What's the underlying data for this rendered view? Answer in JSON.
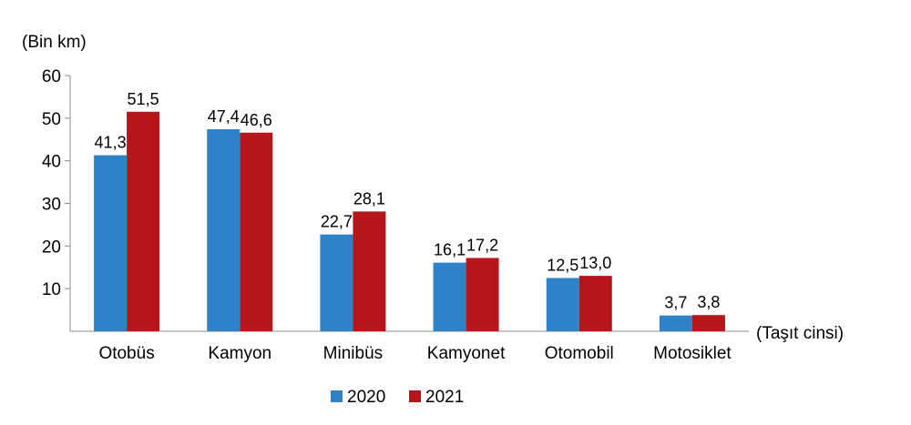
{
  "chart_data": {
    "type": "bar",
    "ylabel": "(Bin km)",
    "xlabel": "(Taşıt cinsi)",
    "ylim": [
      0,
      60
    ],
    "yticks": [
      10,
      20,
      30,
      40,
      50,
      60
    ],
    "grid": false,
    "legend_position": "bottom-center",
    "categories": [
      "Otobüs",
      "Kamyon",
      "Minibüs",
      "Kamyonet",
      "Otomobil",
      "Motosiklet"
    ],
    "series": [
      {
        "name": "2020",
        "color": "#2E82C8",
        "values": [
          41.3,
          47.4,
          22.7,
          16.1,
          12.5,
          3.7
        ],
        "labels": [
          "41,3",
          "47,4",
          "22,7",
          "16,1",
          "12,5",
          "3,7"
        ]
      },
      {
        "name": "2021",
        "color": "#B5161B",
        "values": [
          51.5,
          46.6,
          28.1,
          17.2,
          13.0,
          3.8
        ],
        "labels": [
          "51,5",
          "46,6",
          "28,1",
          "17,2",
          "13,0",
          "3,8"
        ]
      }
    ]
  }
}
